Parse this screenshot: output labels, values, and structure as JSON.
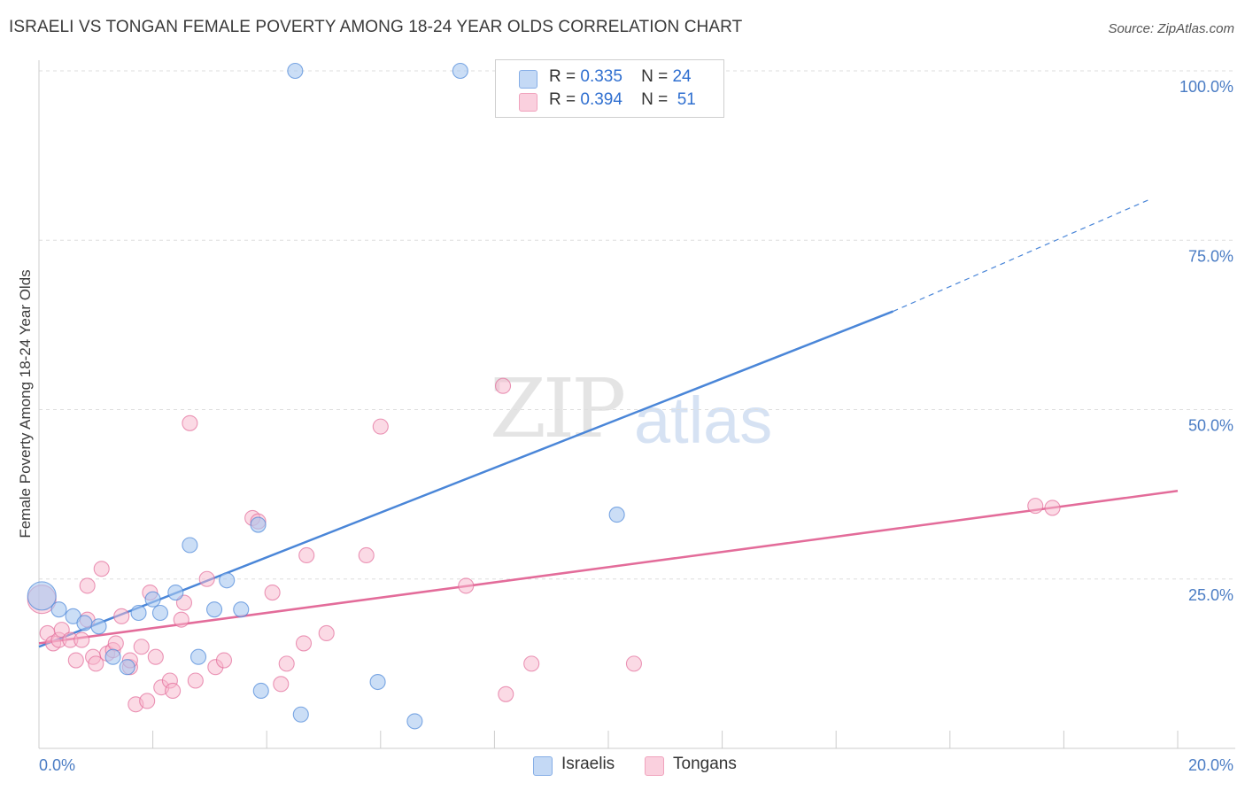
{
  "header": {
    "title": "ISRAELI VS TONGAN FEMALE POVERTY AMONG 18-24 YEAR OLDS CORRELATION CHART",
    "source": "Source: ZipAtlas.com"
  },
  "watermark": {
    "zip": "ZIP",
    "atlas": "atlas"
  },
  "legend": {
    "rows": [
      {
        "r_label": "R =",
        "r_value": "0.335",
        "n_label": "N =",
        "n_value": "24",
        "color": "#a9c8f0"
      },
      {
        "r_label": "R =",
        "r_value": "0.394",
        "n_label": "N =",
        "n_value": "51",
        "color": "#f7b6cb"
      }
    ]
  },
  "bottom_legend": [
    {
      "label": "Israelis",
      "color": "#a9c8f0"
    },
    {
      "label": "Tongans",
      "color": "#f7b6cb"
    }
  ],
  "chart_data": {
    "type": "scatter",
    "title": "ISRAELI VS TONGAN FEMALE POVERTY AMONG 18-24 YEAR OLDS CORRELATION CHART",
    "xlabel": "",
    "ylabel": "Female Poverty Among 18-24 Year Olds",
    "xlim": [
      0,
      20
    ],
    "ylim": [
      0,
      100
    ],
    "x_tick_labels": [
      "0.0%",
      "20.0%"
    ],
    "y_ticks": [
      25,
      50,
      75,
      100
    ],
    "y_tick_labels": [
      "25.0%",
      "50.0%",
      "75.0%",
      "100.0%"
    ],
    "grid": true,
    "series": [
      {
        "name": "Israelis",
        "color": "#4a86d8",
        "fill": "#a9c8f0",
        "points": [
          [
            0.05,
            22.5,
            1
          ],
          [
            0.35,
            20.5,
            0
          ],
          [
            0.6,
            19.5,
            0
          ],
          [
            0.8,
            18.5,
            0
          ],
          [
            1.05,
            18.0,
            0
          ],
          [
            1.3,
            13.5,
            0
          ],
          [
            1.55,
            12.0,
            0
          ],
          [
            1.75,
            20.0,
            0
          ],
          [
            2.0,
            22.0,
            0
          ],
          [
            2.13,
            20.0,
            0
          ],
          [
            2.4,
            23.0,
            0
          ],
          [
            2.65,
            30.0,
            0
          ],
          [
            2.8,
            13.5,
            0
          ],
          [
            3.08,
            20.5,
            0
          ],
          [
            3.3,
            24.8,
            0
          ],
          [
            3.55,
            20.5,
            0
          ],
          [
            3.85,
            33.0,
            0
          ],
          [
            3.9,
            8.5,
            0
          ],
          [
            4.5,
            100.0,
            0
          ],
          [
            4.6,
            5.0,
            0
          ],
          [
            5.95,
            9.8,
            0
          ],
          [
            6.6,
            4.0,
            0
          ],
          [
            7.4,
            100.0,
            0
          ],
          [
            10.15,
            34.5,
            0
          ]
        ],
        "trend": {
          "x": [
            0,
            15.0
          ],
          "y": [
            15.0,
            64.5
          ],
          "extended": {
            "x": [
              15.0,
              19.5
            ],
            "y": [
              64.5,
              81.0
            ]
          }
        }
      },
      {
        "name": "Tongans",
        "color": "#e36c9a",
        "fill": "#f7b6cb",
        "points": [
          [
            0.05,
            22.0,
            1
          ],
          [
            0.15,
            17.0,
            0
          ],
          [
            0.25,
            15.5,
            0
          ],
          [
            0.35,
            16.0,
            0
          ],
          [
            0.4,
            17.5,
            0
          ],
          [
            0.55,
            16.0,
            0
          ],
          [
            0.65,
            13.0,
            0
          ],
          [
            0.75,
            16.0,
            0
          ],
          [
            0.85,
            19.0,
            0
          ],
          [
            0.85,
            24.0,
            0
          ],
          [
            0.95,
            13.5,
            0
          ],
          [
            1.0,
            12.5,
            0
          ],
          [
            1.1,
            26.5,
            0
          ],
          [
            1.2,
            14.0,
            0
          ],
          [
            1.3,
            14.5,
            0
          ],
          [
            1.35,
            15.5,
            0
          ],
          [
            1.45,
            19.5,
            0
          ],
          [
            1.6,
            12.0,
            0
          ],
          [
            1.6,
            13.0,
            0
          ],
          [
            1.7,
            6.5,
            0
          ],
          [
            1.8,
            15.0,
            0
          ],
          [
            1.9,
            7.0,
            0
          ],
          [
            1.95,
            23.0,
            0
          ],
          [
            2.05,
            13.5,
            0
          ],
          [
            2.15,
            9.0,
            0
          ],
          [
            2.3,
            10.0,
            0
          ],
          [
            2.35,
            8.5,
            0
          ],
          [
            2.5,
            19.0,
            0
          ],
          [
            2.55,
            21.5,
            0
          ],
          [
            2.65,
            48.0,
            0
          ],
          [
            2.75,
            10.0,
            0
          ],
          [
            2.95,
            25.0,
            0
          ],
          [
            3.1,
            12.0,
            0
          ],
          [
            3.25,
            13.0,
            0
          ],
          [
            3.75,
            34.0,
            0
          ],
          [
            3.85,
            33.5,
            0
          ],
          [
            4.1,
            23.0,
            0
          ],
          [
            4.25,
            9.5,
            0
          ],
          [
            4.35,
            12.5,
            0
          ],
          [
            4.65,
            15.5,
            0
          ],
          [
            4.7,
            28.5,
            0
          ],
          [
            5.05,
            17.0,
            0
          ],
          [
            5.75,
            28.5,
            0
          ],
          [
            6.0,
            47.5,
            0
          ],
          [
            7.5,
            24.0,
            0
          ],
          [
            8.15,
            53.5,
            0
          ],
          [
            8.2,
            8.0,
            0
          ],
          [
            8.65,
            12.5,
            0
          ],
          [
            10.45,
            12.5,
            0
          ],
          [
            17.5,
            35.8,
            0
          ],
          [
            17.8,
            35.5,
            0
          ]
        ],
        "trend": {
          "x": [
            0,
            20.0
          ],
          "y": [
            15.5,
            38.0
          ]
        }
      }
    ]
  }
}
